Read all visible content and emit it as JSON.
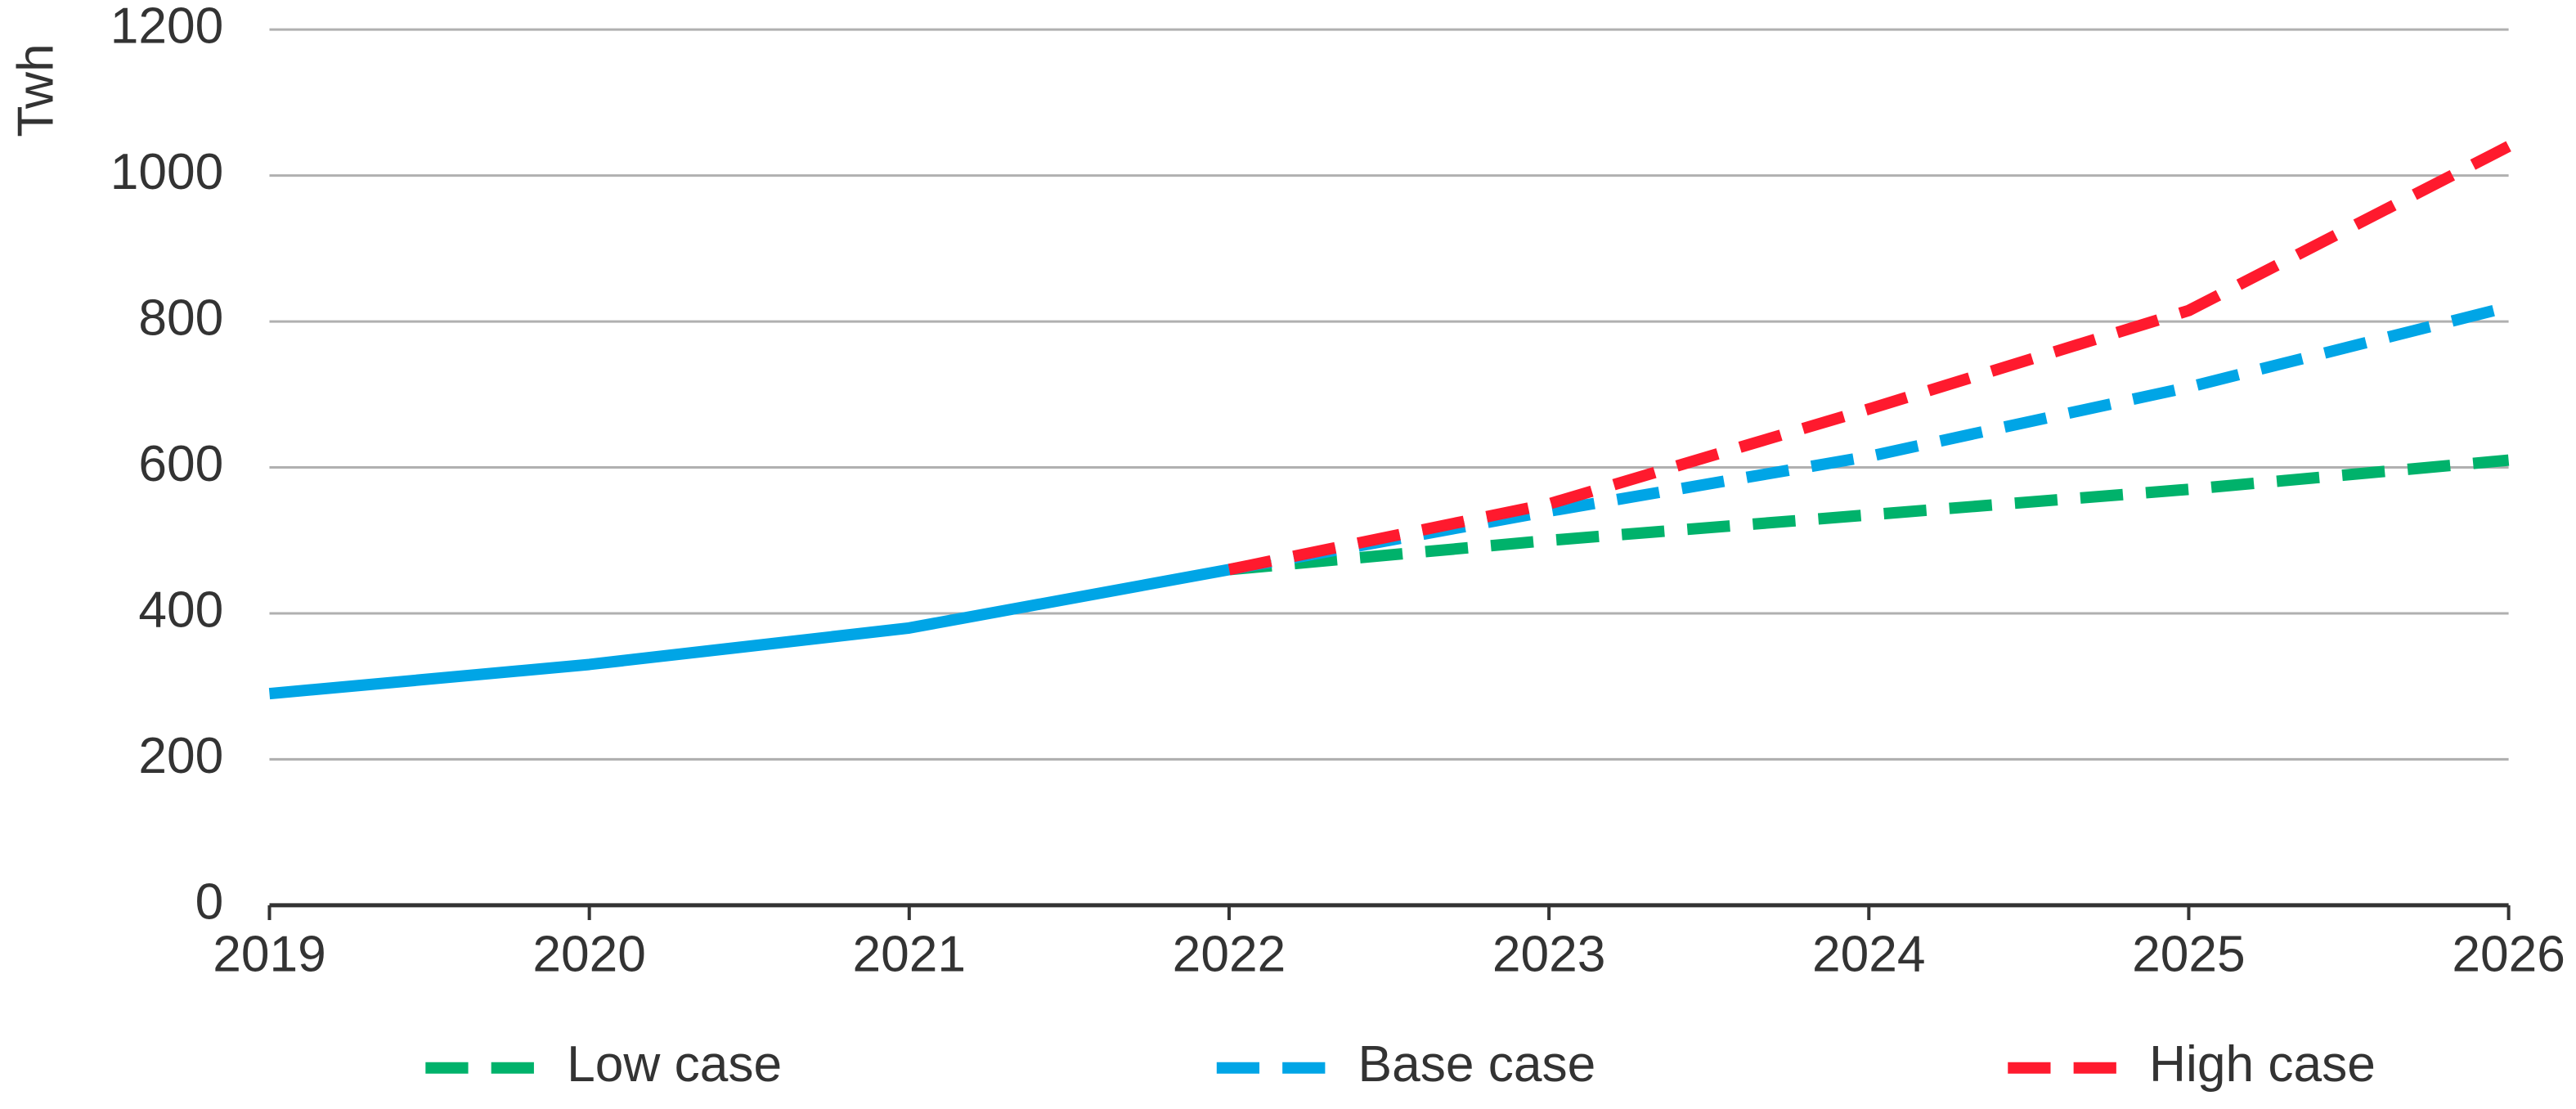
{
  "chart_data": {
    "type": "line",
    "y_label": "Twh",
    "x": [
      2019,
      2020,
      2021,
      2022,
      2023,
      2024,
      2025,
      2026
    ],
    "xlim": [
      2019,
      2026
    ],
    "xticks": [
      2019,
      2020,
      2021,
      2022,
      2023,
      2024,
      2025,
      2026
    ],
    "ylim": [
      0,
      1200
    ],
    "yticks": [
      0,
      200,
      400,
      600,
      800,
      1000,
      1200
    ],
    "grid": true,
    "legend": "bottom",
    "series": [
      {
        "name": "Low case",
        "color": "#00b26b",
        "line_style": "dashed",
        "values": [
          null,
          null,
          null,
          460,
          500,
          535,
          570,
          610
        ]
      },
      {
        "name": "Base case",
        "color": "#00a5e6",
        "line_style": "dashed",
        "values": [
          null,
          null,
          null,
          460,
          540,
          615,
          710,
          820
        ]
      },
      {
        "name": "High case",
        "color": "#ff1a2e",
        "line_style": "dashed",
        "values": [
          null,
          null,
          null,
          460,
          550,
          680,
          815,
          1040
        ]
      },
      {
        "color": "#00a5e6",
        "line_style": "solid",
        "values": [
          290,
          330,
          380,
          460,
          null,
          null,
          null,
          null
        ]
      }
    ]
  }
}
